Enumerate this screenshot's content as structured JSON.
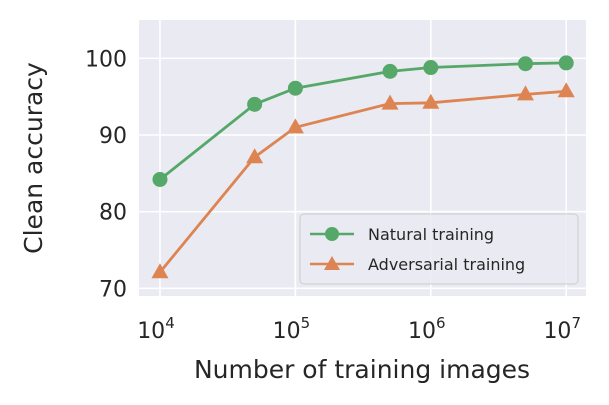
{
  "chart_data": {
    "type": "line",
    "title": "",
    "xlabel": "Number of training images",
    "ylabel": "Clean accuracy",
    "x_scale": "log",
    "xlim": [
      7000,
      14000000
    ],
    "ylim": [
      69,
      105
    ],
    "x_ticks": [
      {
        "value": 10000,
        "base": "10",
        "exp": "4"
      },
      {
        "value": 100000,
        "base": "10",
        "exp": "5"
      },
      {
        "value": 1000000,
        "base": "10",
        "exp": "6"
      },
      {
        "value": 10000000,
        "base": "10",
        "exp": "7"
      }
    ],
    "y_ticks": [
      70,
      80,
      90,
      100
    ],
    "grid": true,
    "legend_position": "lower-right",
    "series": [
      {
        "name": "Natural training",
        "color": "#55a868",
        "marker": "circle",
        "x": [
          10000,
          50000,
          100000,
          500000,
          1000000,
          5000000,
          10000000
        ],
        "y": [
          84.2,
          94.0,
          96.1,
          98.3,
          98.8,
          99.3,
          99.4
        ]
      },
      {
        "name": "Adversarial training",
        "color": "#dd8452",
        "marker": "triangle",
        "x": [
          10000,
          50000,
          100000,
          500000,
          1000000,
          5000000,
          10000000
        ],
        "y": [
          72.1,
          87.1,
          91.0,
          94.1,
          94.2,
          95.3,
          95.7
        ]
      }
    ]
  }
}
